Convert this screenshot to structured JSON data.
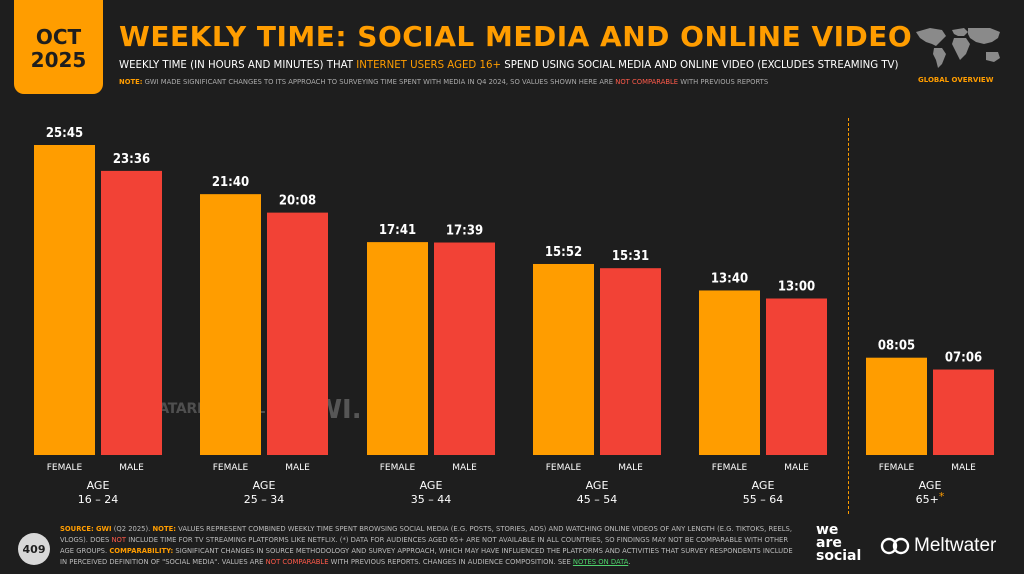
{
  "badge": {
    "month": "OCT",
    "year": "2025"
  },
  "header": {
    "title": "WEEKLY TIME: SOCIAL MEDIA AND ONLINE VIDEO",
    "subtitle_pre": "WEEKLY TIME (IN HOURS AND MINUTES) THAT ",
    "subtitle_highlight": "INTERNET USERS AGED 16+",
    "subtitle_post": " SPEND USING SOCIAL MEDIA AND ONLINE VIDEO (EXCLUDES STREAMING TV)",
    "note_label": "NOTE:",
    "note_text": " GWI MADE SIGNIFICANT CHANGES TO ITS APPROACH TO SURVEYING TIME SPENT WITH MEDIA IN Q4 2024, SO VALUES SHOWN HERE ARE ",
    "note_highlight": "NOT COMPARABLE",
    "note_post": " WITH PREVIOUS REPORTS",
    "global_label": "GLOBAL OVERVIEW"
  },
  "watermarks": {
    "datareportal": "DATAREPORTAL",
    "gwi": "GWI."
  },
  "colors": {
    "female": "#ff9d00",
    "male": "#f24236",
    "background": "#1e1e1e",
    "accent": "#ff9d00"
  },
  "chart_data": {
    "type": "bar",
    "categories": [
      "AGE 16 – 24",
      "AGE 25 – 34",
      "AGE 35 – 44",
      "AGE 45 – 54",
      "AGE 55 – 64",
      "AGE 65+*"
    ],
    "group_labels": [
      {
        "line1": "AGE",
        "line2": "16 – 24",
        "star": ""
      },
      {
        "line1": "AGE",
        "line2": "25 – 34",
        "star": ""
      },
      {
        "line1": "AGE",
        "line2": "35 – 44",
        "star": ""
      },
      {
        "line1": "AGE",
        "line2": "45 – 54",
        "star": ""
      },
      {
        "line1": "AGE",
        "line2": "55 – 64",
        "star": ""
      },
      {
        "line1": "AGE",
        "line2": "65+",
        "star": "*"
      }
    ],
    "series": [
      {
        "name": "FEMALE",
        "values": [
          25.75,
          21.667,
          17.683,
          15.867,
          13.667,
          8.083
        ],
        "labels": [
          "25:45",
          "21:40",
          "17:41",
          "15:52",
          "13:40",
          "08:05"
        ]
      },
      {
        "name": "MALE",
        "values": [
          23.6,
          20.133,
          17.65,
          15.517,
          13.0,
          7.1
        ],
        "labels": [
          "23:36",
          "20:08",
          "17:39",
          "15:31",
          "13:00",
          "07:06"
        ]
      }
    ],
    "unit": "hours per week",
    "ylim": [
      0,
      25.75
    ],
    "grid": false
  },
  "footer": {
    "source_label": "SOURCE:",
    "source_gwi": "GWI",
    "source_text": " (Q2 2025). ",
    "note_label": "NOTE:",
    "note_text": " VALUES REPRESENT COMBINED WEEKLY TIME SPENT BROWSING SOCIAL MEDIA (E.G. POSTS, STORIES, ADS) AND WATCHING ONLINE VIDEOS OF ANY LENGTH (E.G. TIKTOKS, REELS, VLOGS). DOES ",
    "note_not": "NOT",
    "note_text2": " INCLUDE TIME FOR TV STREAMING PLATFORMS LIKE NETFLIX. (*) DATA FOR AUDIENCES AGED 65+ ARE NOT AVAILABLE IN ALL COUNTRIES, SO FINDINGS MAY NOT BE COMPARABLE WITH OTHER AGE GROUPS. ",
    "comp_label": "COMPARABILITY:",
    "comp_text": " SIGNIFICANT CHANGES IN SOURCE METHODOLOGY AND SURVEY APPROACH, WHICH MAY HAVE INFLUENCED THE PLATFORMS AND ACTIVITIES THAT SURVEY RESPONDENTS INCLUDE IN PERCEIVED DEFINITION OF \"SOCIAL MEDIA\". VALUES ARE ",
    "comp_not": "NOT COMPARABLE",
    "comp_text2": " WITH PREVIOUS REPORTS. CHANGES IN AUDIENCE COMPOSITION. SEE ",
    "notes_link": "NOTES ON DATA",
    "end": ".",
    "page_number": "409",
    "we_are_social": "we\nare\nsocial",
    "meltwater": "Meltwater"
  }
}
